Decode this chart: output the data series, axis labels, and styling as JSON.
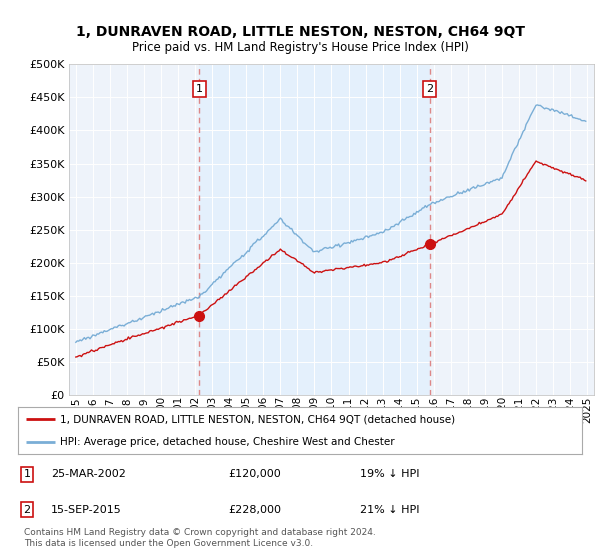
{
  "title": "1, DUNRAVEN ROAD, LITTLE NESTON, NESTON, CH64 9QT",
  "subtitle": "Price paid vs. HM Land Registry's House Price Index (HPI)",
  "background_color": "#ffffff",
  "plot_bg_color": "#eef3fa",
  "plot_bg_shaded": "#dce9f5",
  "red_line_label": "1, DUNRAVEN ROAD, LITTLE NESTON, NESTON, CH64 9QT (detached house)",
  "blue_line_label": "HPI: Average price, detached house, Cheshire West and Chester",
  "sale1_date": "25-MAR-2002",
  "sale1_price": 120000,
  "sale1_pct": "19% ↓ HPI",
  "sale2_date": "15-SEP-2015",
  "sale2_price": 228000,
  "sale2_pct": "21% ↓ HPI",
  "footer": "Contains HM Land Registry data © Crown copyright and database right 2024.\nThis data is licensed under the Open Government Licence v3.0.",
  "ylim": [
    0,
    500000
  ],
  "yticks": [
    0,
    50000,
    100000,
    150000,
    200000,
    250000,
    300000,
    350000,
    400000,
    450000,
    500000
  ],
  "start_year": 1995,
  "end_year": 2025,
  "red_color": "#cc1111",
  "blue_color": "#7aaed6",
  "dashed_color": "#dd8888",
  "grid_color": "#cccccc",
  "shaded_bg": "#ddeeff"
}
